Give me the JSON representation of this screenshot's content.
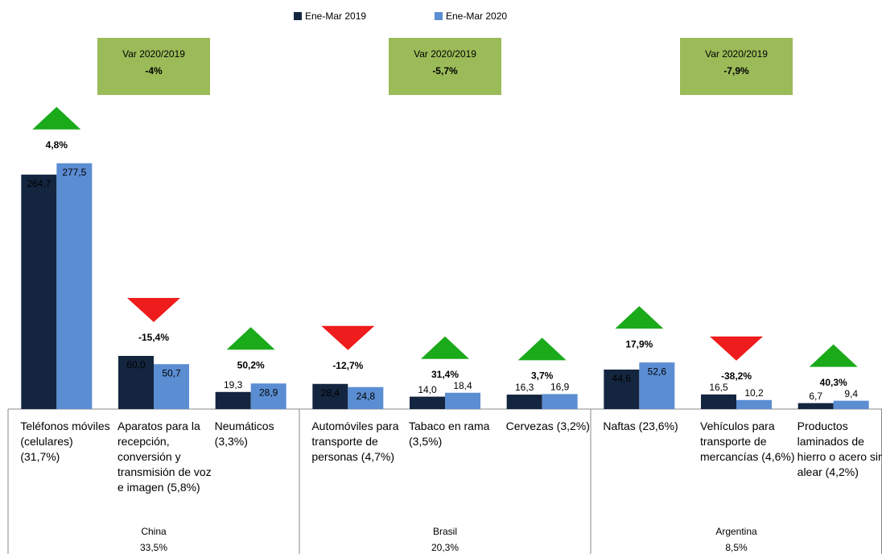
{
  "chart_data": {
    "type": "bar",
    "categories": [
      "Teléfonos móviles (celulares) (31,7%)",
      "Aparatos para la recepción, conversión y transmisión de voz e imagen (5,8%)",
      "Neumáticos (3,3%)",
      "Automóviles para transporte de personas (4,7%)",
      "Tabaco en rama (3,5%)",
      "Cervezas (3,2%)",
      "Naftas (23,6%)",
      "Vehículos para transporte de mercancías (4,6%)",
      "Productos laminados de hierro o acero sin alear (4,2%)"
    ],
    "series": [
      {
        "name": "Ene-Mar 2019",
        "color": "#14253f",
        "values": [
          264.7,
          60.0,
          19.3,
          28.4,
          14.0,
          16.3,
          44.6,
          16.5,
          6.7
        ],
        "value_labels": [
          "264,7",
          "60,0",
          "19,3",
          "28,4",
          "14,0",
          "16,3",
          "44,6",
          "16,5",
          "6,7"
        ]
      },
      {
        "name": "Ene-Mar 2020",
        "color": "#5b8dd3",
        "values": [
          277.5,
          50.7,
          28.9,
          24.8,
          18.4,
          16.9,
          52.6,
          10.2,
          9.4
        ],
        "value_labels": [
          "277,5",
          "50,7",
          "28,9",
          "24,8",
          "18,4",
          "16,9",
          "52,6",
          "10,2",
          "9,4"
        ]
      }
    ],
    "changes": [
      4.8,
      -15.4,
      50.2,
      -12.7,
      31.4,
      3.7,
      17.9,
      -38.2,
      40.3
    ],
    "change_labels": [
      "4,8%",
      "-15,4%",
      "50,2%",
      "-12,7%",
      "31,4%",
      "3,7%",
      "17,9%",
      "-38,2%",
      "40,3%"
    ],
    "up_color": "#1aaa1a",
    "down_color": "#ee1c1c",
    "box_color": "#9bbb59",
    "groups": [
      {
        "name": "China",
        "share": "33,5%",
        "var_title": "Var 2020/2019",
        "var": "-4%",
        "size": 3
      },
      {
        "name": "Brasil",
        "share": "20,3%",
        "var_title": "Var 2020/2019",
        "var": "-5,7%",
        "size": 3
      },
      {
        "name": "Argentina",
        "share": "8,5%",
        "var_title": "Var 2020/2019",
        "var": "-7,9%",
        "size": 3
      }
    ],
    "ylim": [
      0,
      300
    ]
  }
}
